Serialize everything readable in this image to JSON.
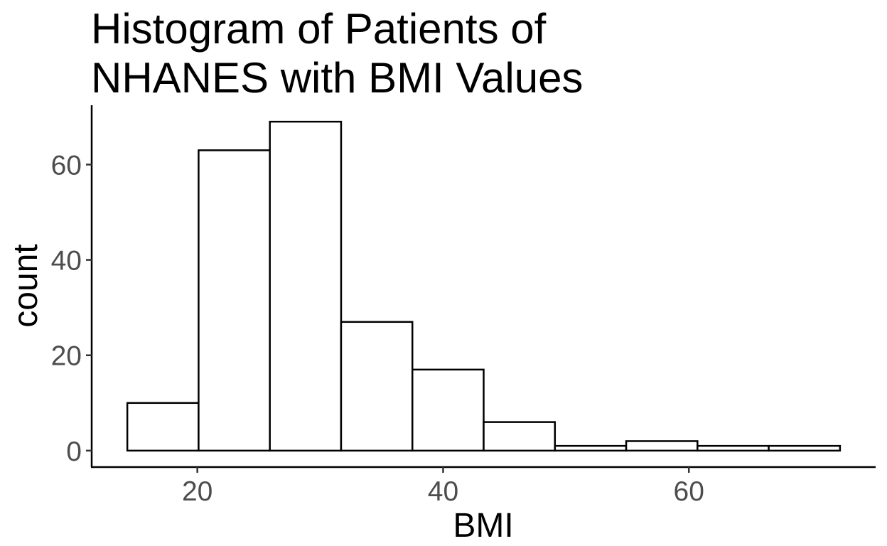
{
  "chart_data": {
    "type": "bar",
    "title_lines": [
      "Histogram of Patients of",
      "NHANES with BMI Values"
    ],
    "xlabel": "BMI",
    "ylabel": "count",
    "bin_edges": [
      14.3,
      20.1,
      25.9,
      31.7,
      37.5,
      43.3,
      49.1,
      54.9,
      60.7,
      66.5,
      72.3
    ],
    "values": [
      10,
      63,
      69,
      27,
      17,
      6,
      1,
      2,
      1,
      1
    ],
    "xlim": [
      11.4,
      75.2
    ],
    "ylim": [
      -3.45,
      72.45
    ],
    "x_ticks": [
      20,
      40,
      60
    ],
    "y_ticks": [
      0,
      20,
      40,
      60
    ],
    "bar_fill": "#ffffff",
    "bar_stroke": "#000000",
    "tick_label_color": "#4d4d4d",
    "grid": false,
    "legend": "none"
  }
}
